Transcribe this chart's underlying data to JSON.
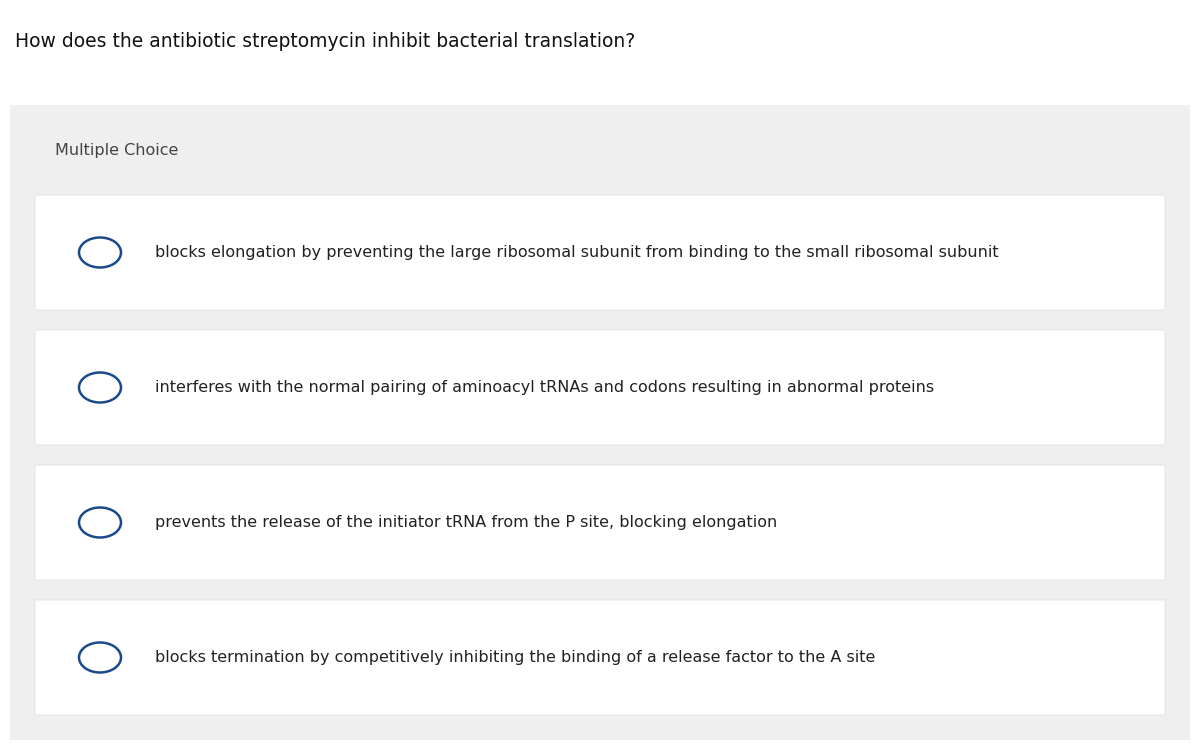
{
  "title": "How does the antibiotic streptomycin inhibit bacterial translation?",
  "label": "Multiple Choice",
  "options": [
    "blocks elongation by preventing the large ribosomal subunit from binding to the small ribosomal subunit",
    "interferes with the normal pairing of aminoacyl tRNAs and codons resulting in abnormal proteins",
    "prevents the release of the initiator tRNA from the P site, blocking elongation",
    "blocks termination by competitively inhibiting the binding of a release factor to the A site"
  ],
  "bg_color": "#ffffff",
  "header_bg": "#efefef",
  "option_bg": "#ffffff",
  "title_fontsize": 13.5,
  "label_fontsize": 11.5,
  "option_fontsize": 11.5,
  "circle_color": "#1a4a8a",
  "title_color": "#111111",
  "text_color": "#222222",
  "label_color": "#444444"
}
